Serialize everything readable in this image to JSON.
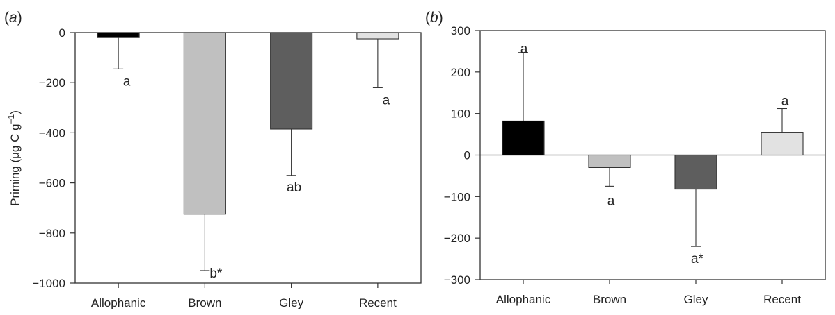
{
  "colors": {
    "Allophanic": "#000000",
    "Brown": "#c0c0c0",
    "Gley": "#5e5e5e",
    "Recent": "#e2e2e2",
    "axis": "#333333"
  },
  "chart_data": [
    {
      "type": "bar",
      "panel_label": "(a)",
      "ylabel": "Priming (μg C g⁻¹)",
      "categories": [
        "Allophanic",
        "Brown",
        "Gley",
        "Recent"
      ],
      "values": [
        -20,
        -725,
        -385,
        -25
      ],
      "error_bars": [
        125,
        225,
        185,
        195
      ],
      "significance_labels": [
        "a",
        "b*",
        "ab",
        "a"
      ],
      "ylim": [
        -1000,
        0
      ],
      "yticks": [
        0,
        -200,
        -400,
        -600,
        -800,
        -1000
      ],
      "ytick_labels": [
        "0",
        "−200",
        "−400",
        "−600",
        "−800",
        "−1000"
      ],
      "grid": false
    },
    {
      "type": "bar",
      "panel_label": "(b)",
      "categories": [
        "Allophanic",
        "Brown",
        "Gley",
        "Recent"
      ],
      "values": [
        82,
        -30,
        -82,
        55
      ],
      "error_bars": [
        165,
        45,
        138,
        57
      ],
      "significance_labels": [
        "a",
        "a",
        "a*",
        "a"
      ],
      "ylim": [
        -300,
        300
      ],
      "yticks": [
        300,
        200,
        100,
        0,
        -100,
        -200,
        -300
      ],
      "ytick_labels": [
        "300",
        "200",
        "100",
        "0",
        "−100",
        "−200",
        "−300"
      ],
      "grid": false
    }
  ]
}
